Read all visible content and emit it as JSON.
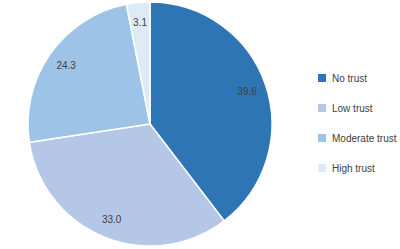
{
  "chart_data": {
    "type": "pie",
    "categories": [
      "No trust",
      "Low trust",
      "Moderate trust",
      "High trust"
    ],
    "values": [
      39.6,
      33.0,
      24.3,
      3.1
    ],
    "value_labels": [
      "39.6",
      "33.0",
      "24.3",
      "3.1"
    ],
    "colors": [
      "#2e75b6",
      "#b4c7e7",
      "#9dc3e6",
      "#deebf7"
    ],
    "data_labels": true,
    "legend": "right"
  }
}
